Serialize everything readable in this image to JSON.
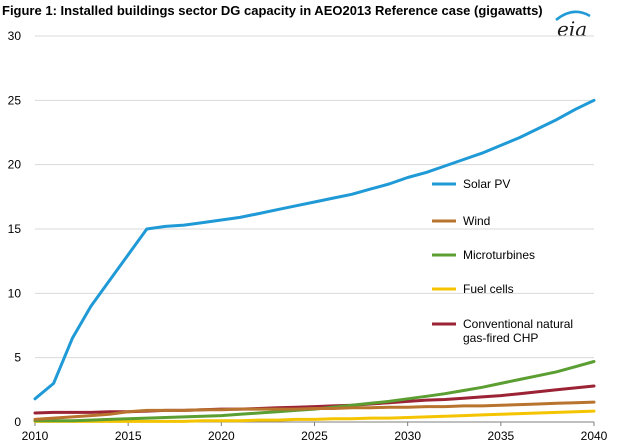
{
  "header": {
    "title": "Figure 1:  Installed buildings sector DG capacity in AEO2013 Reference case (gigawatts)",
    "logo_text": "eia"
  },
  "chart_data": {
    "type": "line",
    "title": "Figure 1:  Installed buildings sector DG capacity in AEO2013 Reference case (gigawatts)",
    "xlabel": "",
    "ylabel": "",
    "xlim": [
      2010,
      2040
    ],
    "ylim": [
      0,
      30
    ],
    "xticks": [
      2010,
      2015,
      2020,
      2025,
      2030,
      2035,
      2040
    ],
    "yticks": [
      0,
      5,
      10,
      15,
      20,
      25,
      30
    ],
    "grid": "horizontal",
    "legend_position": "right",
    "x": [
      2010,
      2011,
      2012,
      2013,
      2014,
      2015,
      2016,
      2017,
      2018,
      2019,
      2020,
      2021,
      2022,
      2023,
      2024,
      2025,
      2026,
      2027,
      2028,
      2029,
      2030,
      2031,
      2032,
      2033,
      2034,
      2035,
      2036,
      2037,
      2038,
      2039,
      2040
    ],
    "series": [
      {
        "name": "Solar PV",
        "color": "#1f9ad6",
        "values": [
          1.8,
          3.0,
          6.5,
          9.0,
          11.0,
          13.0,
          15.0,
          15.2,
          15.3,
          15.5,
          15.7,
          15.9,
          16.2,
          16.5,
          16.8,
          17.1,
          17.4,
          17.7,
          18.1,
          18.5,
          19.0,
          19.4,
          19.9,
          20.4,
          20.9,
          21.5,
          22.1,
          22.8,
          23.5,
          24.3,
          25.0
        ]
      },
      {
        "name": "Wind",
        "color": "#b8732f",
        "values": [
          0.2,
          0.3,
          0.4,
          0.5,
          0.6,
          0.8,
          0.9,
          0.9,
          0.9,
          0.95,
          0.95,
          1.0,
          1.0,
          1.0,
          1.0,
          1.05,
          1.05,
          1.1,
          1.1,
          1.15,
          1.15,
          1.2,
          1.2,
          1.25,
          1.25,
          1.3,
          1.35,
          1.4,
          1.45,
          1.5,
          1.55
        ]
      },
      {
        "name": "Microturbines",
        "color": "#5b9e32",
        "values": [
          0.1,
          0.1,
          0.1,
          0.15,
          0.2,
          0.25,
          0.3,
          0.35,
          0.4,
          0.45,
          0.5,
          0.6,
          0.7,
          0.8,
          0.9,
          1.0,
          1.15,
          1.3,
          1.45,
          1.6,
          1.8,
          2.0,
          2.2,
          2.45,
          2.7,
          3.0,
          3.3,
          3.6,
          3.9,
          4.3,
          4.7
        ]
      },
      {
        "name": "Fuel cells",
        "color": "#f5c400",
        "values": [
          0.05,
          0.05,
          0.05,
          0.05,
          0.05,
          0.05,
          0.05,
          0.05,
          0.05,
          0.1,
          0.1,
          0.1,
          0.15,
          0.15,
          0.2,
          0.2,
          0.25,
          0.25,
          0.3,
          0.3,
          0.35,
          0.4,
          0.45,
          0.5,
          0.55,
          0.6,
          0.65,
          0.7,
          0.75,
          0.8,
          0.85
        ]
      },
      {
        "name": "Conventional natural gas-fired CHP",
        "label_lines": [
          "Conventional natural",
          "gas-fired CHP"
        ],
        "color": "#9b2335",
        "values": [
          0.7,
          0.75,
          0.75,
          0.75,
          0.8,
          0.8,
          0.85,
          0.9,
          0.9,
          0.95,
          1.0,
          1.0,
          1.05,
          1.1,
          1.15,
          1.2,
          1.25,
          1.3,
          1.4,
          1.5,
          1.6,
          1.7,
          1.75,
          1.85,
          1.95,
          2.05,
          2.2,
          2.35,
          2.5,
          2.65,
          2.8
        ]
      }
    ]
  }
}
